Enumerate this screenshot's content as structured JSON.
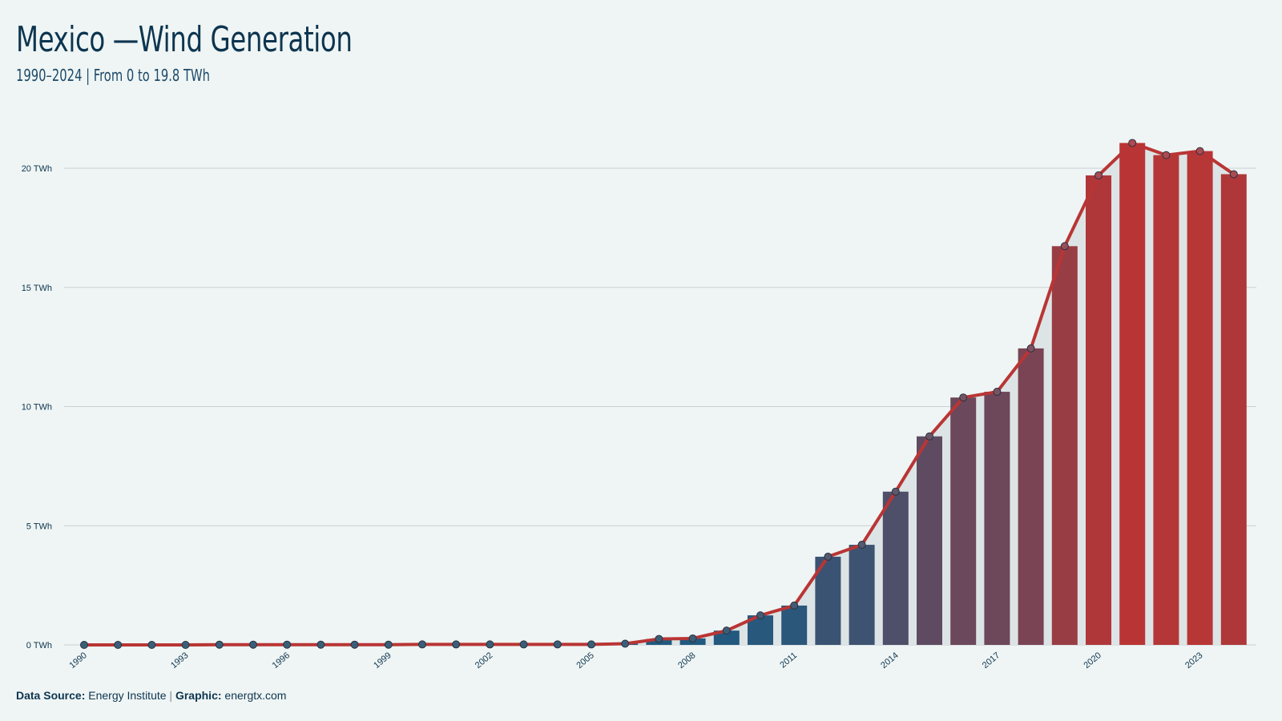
{
  "header": {
    "title": "Mexico —Wind Generation",
    "subtitle": "1990–2024 | From 0 to 19.8 TWh"
  },
  "footer": {
    "source_label": "Data Source:",
    "source_value": "Energy Institute",
    "separator": "|",
    "graphic_label": "Graphic:",
    "graphic_value": "energtx.com"
  },
  "colors": {
    "background": "#eff5f4",
    "bar_low": "#1f5a80",
    "bar_high": "#b93535",
    "line": "#b93535",
    "area": "#dde4e5",
    "grid": "#c8d0d3",
    "text": "#0d3550"
  },
  "chart_data": {
    "type": "bar",
    "title": "Mexico —Wind Generation",
    "subtitle": "1990–2024 | From 0 to 19.8 TWh",
    "unit": "TWh",
    "ylim": [
      0,
      21.5
    ],
    "yticks": [
      0,
      5,
      10,
      15,
      20
    ],
    "ytick_labels": [
      "0 TWh",
      "5 TWh",
      "10 TWh",
      "15 TWh",
      "20 TWh"
    ],
    "xtick_labels": [
      "1990",
      "1993",
      "1996",
      "1999",
      "2002",
      "2005",
      "2008",
      "2011",
      "2014",
      "2017",
      "2020",
      "2023"
    ],
    "grid": true,
    "categories": [
      1990,
      1991,
      1992,
      1993,
      1994,
      1995,
      1996,
      1997,
      1998,
      1999,
      2000,
      2001,
      2002,
      2003,
      2004,
      2005,
      2006,
      2007,
      2008,
      2009,
      2010,
      2011,
      2012,
      2013,
      2014,
      2015,
      2016,
      2017,
      2018,
      2019,
      2020,
      2021,
      2022,
      2023,
      2024
    ],
    "values": [
      0,
      0,
      0,
      0,
      0.01,
      0.01,
      0.01,
      0.01,
      0.01,
      0.01,
      0.02,
      0.02,
      0.02,
      0.02,
      0.02,
      0.02,
      0.05,
      0.25,
      0.27,
      0.6,
      1.24,
      1.65,
      3.7,
      4.2,
      6.43,
      8.75,
      10.38,
      10.62,
      12.44,
      16.73,
      19.7,
      21.06,
      20.55,
      20.72,
      19.75
    ]
  }
}
